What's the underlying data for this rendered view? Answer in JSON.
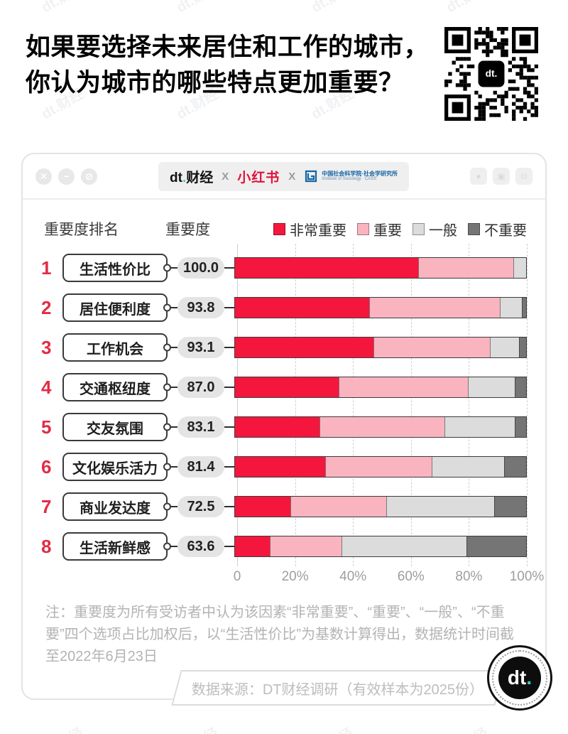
{
  "watermark": "dt.财经",
  "header": {
    "title_line1": "如果要选择未来居住和工作的城市，",
    "title_line2": "你认为城市的哪些特点更加重要？"
  },
  "icons": {
    "close": "✕",
    "minimize": "−",
    "block": "⊘",
    "account": "●",
    "lock": "▣",
    "copy": "⧉"
  },
  "brandbar": {
    "dt_logo": "dt",
    "dt_dot": ".",
    "dt_name": "财经",
    "separator": "X",
    "xiaohongshu": "小红书",
    "cass_name": "中国社会科学院·社会学研究所",
    "cass_en": "Institute of Sociology · CASS"
  },
  "chart_header": {
    "rank_header": "重要度排名",
    "score_header": "重要度"
  },
  "chart_data": {
    "type": "bar",
    "stacked": true,
    "orientation": "horizontal",
    "categories": [
      "生活性价比",
      "居住便利度",
      "工作机会",
      "交通枢纽度",
      "交友氛围",
      "文化娱乐活力",
      "商业发达度",
      "生活新鲜感"
    ],
    "ranks": [
      "1",
      "2",
      "3",
      "4",
      "5",
      "6",
      "7",
      "8"
    ],
    "scores": [
      "100.0",
      "93.8",
      "93.1",
      "87.0",
      "83.1",
      "81.4",
      "72.5",
      "63.6"
    ],
    "series": [
      {
        "name": "非常重要",
        "color": "#F5163D",
        "values": [
          63,
          46,
          47.5,
          35.5,
          29,
          31,
          19,
          12
        ]
      },
      {
        "name": "重要",
        "color": "#F9B4C0",
        "values": [
          32.5,
          45,
          40,
          44.5,
          43,
          36.5,
          33,
          24.5
        ]
      },
      {
        "name": "一般",
        "color": "#DCDCDC",
        "values": [
          4.5,
          7.5,
          10,
          16,
          24,
          25,
          37,
          43
        ]
      },
      {
        "name": "不重要",
        "color": "#757575",
        "values": [
          0,
          1.5,
          2.5,
          4,
          4,
          7.5,
          11,
          20.5
        ]
      }
    ],
    "x_ticks": [
      "0",
      "20%",
      "40%",
      "60%",
      "80%",
      "100%"
    ],
    "xlim": [
      0,
      100
    ],
    "grid": "dashed-vertical",
    "legend_position": "top-right"
  },
  "note": "注：重要度为所有受访者中认为该因素“非常重要”、“重要”、“一般”、“不重要”四个选项占比加权后，以“生活性价比”为基数计算得出，数据统计时间截至2022年6月23日",
  "source": "数据来源：DT财经调研（有效样本为2025份）",
  "badge": {
    "dt": "dt",
    "dot": "."
  }
}
